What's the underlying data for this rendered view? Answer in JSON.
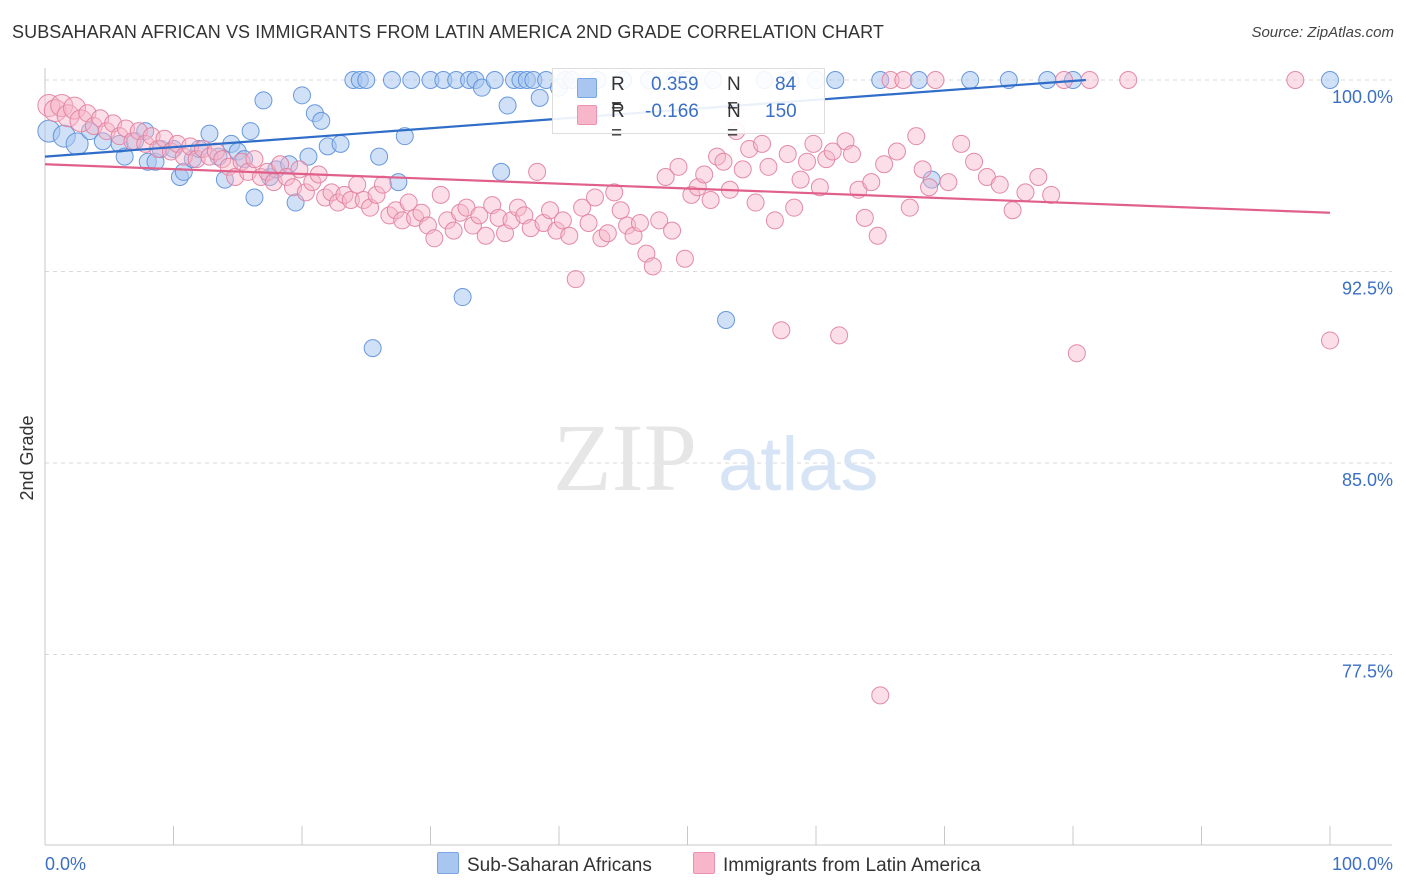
{
  "title": "SUBSAHARAN AFRICAN VS IMMIGRANTS FROM LATIN AMERICA 2ND GRADE CORRELATION CHART",
  "source": "Source: ZipAtlas.com",
  "watermark": {
    "zip": "ZIP",
    "atlas": "atlas"
  },
  "legend": {
    "r_label": "R =",
    "n_label": "N =",
    "rows": [
      {
        "r": "0.359",
        "n": "84",
        "color": "#a8c6f0"
      },
      {
        "r": "-0.166",
        "n": "150",
        "color": "#f7b6c9"
      }
    ]
  },
  "chart_data": {
    "type": "scatter",
    "title": "SUBSAHARAN AFRICAN VS IMMIGRANTS FROM LATIN AMERICA 2ND GRADE CORRELATION CHART",
    "xlabel": "",
    "ylabel": "2nd Grade",
    "xlim": [
      0,
      100
    ],
    "ylim": [
      70,
      100.8
    ],
    "x_tick_labels": [
      "0.0%",
      "100.0%"
    ],
    "y_ticks": [
      100.0,
      92.5,
      85.0,
      77.5
    ],
    "y_tick_labels": [
      "100.0%",
      "92.5%",
      "85.0%",
      "77.5%"
    ],
    "grid": true,
    "legend_position": "bottom-center",
    "series": [
      {
        "name": "Sub-Saharan Africans",
        "color": "#a8c6f0",
        "stroke": "#5b8fd8",
        "line_color": "#2f6dc8",
        "trend": [
          [
            0,
            97.0
          ],
          [
            81,
            100.0
          ]
        ],
        "points": [
          [
            0.3,
            98.0
          ],
          [
            1.5,
            97.8
          ],
          [
            2.5,
            97.5
          ],
          [
            3.5,
            98.0
          ],
          [
            4.5,
            97.6
          ],
          [
            5.8,
            97.5
          ],
          [
            6.2,
            97.0
          ],
          [
            7.0,
            97.6
          ],
          [
            7.8,
            98.0
          ],
          [
            8.0,
            96.8
          ],
          [
            8.6,
            96.8
          ],
          [
            9.0,
            97.3
          ],
          [
            10.0,
            97.3
          ],
          [
            10.5,
            96.2
          ],
          [
            10.8,
            96.4
          ],
          [
            11.5,
            96.9
          ],
          [
            12.0,
            97.3
          ],
          [
            12.8,
            97.9
          ],
          [
            13.5,
            97.0
          ],
          [
            14.0,
            96.1
          ],
          [
            14.5,
            97.5
          ],
          [
            15.0,
            97.2
          ],
          [
            15.5,
            96.9
          ],
          [
            16.0,
            98.0
          ],
          [
            16.3,
            95.4
          ],
          [
            17.0,
            99.2
          ],
          [
            17.5,
            96.2
          ],
          [
            18.0,
            96.5
          ],
          [
            19.0,
            96.7
          ],
          [
            19.5,
            95.2
          ],
          [
            20.0,
            99.4
          ],
          [
            20.5,
            97.0
          ],
          [
            21.0,
            98.7
          ],
          [
            21.5,
            98.4
          ],
          [
            22.0,
            97.4
          ],
          [
            23.0,
            97.5
          ],
          [
            24.0,
            100.0
          ],
          [
            24.5,
            100.0
          ],
          [
            25.0,
            100.0
          ],
          [
            25.5,
            89.5
          ],
          [
            26.0,
            97.0
          ],
          [
            27.0,
            100.0
          ],
          [
            27.5,
            96.0
          ],
          [
            28.0,
            97.8
          ],
          [
            28.5,
            100.0
          ],
          [
            30.0,
            100.0
          ],
          [
            31.0,
            100.0
          ],
          [
            32.0,
            100.0
          ],
          [
            32.5,
            91.5
          ],
          [
            33.0,
            100.0
          ],
          [
            33.5,
            100.0
          ],
          [
            34.0,
            99.7
          ],
          [
            35.0,
            100.0
          ],
          [
            35.5,
            96.4
          ],
          [
            36.0,
            99.0
          ],
          [
            36.5,
            100.0
          ],
          [
            37.0,
            100.0
          ],
          [
            37.5,
            100.0
          ],
          [
            38.0,
            100.0
          ],
          [
            38.5,
            99.3
          ],
          [
            39.0,
            100.0
          ],
          [
            40.0,
            99.7
          ],
          [
            40.5,
            100.0
          ],
          [
            41.0,
            100.0
          ],
          [
            43.0,
            100.0
          ],
          [
            45.0,
            100.0
          ],
          [
            47.0,
            100.0
          ],
          [
            49.0,
            100.0
          ],
          [
            50.0,
            100.0
          ],
          [
            52.0,
            100.0
          ],
          [
            53.0,
            90.6
          ],
          [
            56.0,
            100.0
          ],
          [
            58.0,
            100.0
          ],
          [
            60.0,
            100.0
          ],
          [
            61.5,
            100.0
          ],
          [
            65.0,
            100.0
          ],
          [
            68.0,
            100.0
          ],
          [
            69.0,
            96.1
          ],
          [
            72.0,
            100.0
          ],
          [
            75.0,
            100.0
          ],
          [
            78.0,
            100.0
          ],
          [
            80.0,
            100.0
          ],
          [
            100.0,
            100.0
          ]
        ]
      },
      {
        "name": "Immigrants from Latin America",
        "color": "#f7b6c9",
        "stroke": "#e0809f",
        "line_color": "#e0608a",
        "trend": [
          [
            0,
            96.7
          ],
          [
            100,
            94.8
          ]
        ],
        "points": [
          [
            0.3,
            99.0
          ],
          [
            0.8,
            98.8
          ],
          [
            1.3,
            99.0
          ],
          [
            1.8,
            98.6
          ],
          [
            2.3,
            98.9
          ],
          [
            2.8,
            98.4
          ],
          [
            3.3,
            98.7
          ],
          [
            3.8,
            98.2
          ],
          [
            4.3,
            98.5
          ],
          [
            4.8,
            98.0
          ],
          [
            5.3,
            98.3
          ],
          [
            5.8,
            97.8
          ],
          [
            6.3,
            98.1
          ],
          [
            6.8,
            97.6
          ],
          [
            7.3,
            98.0
          ],
          [
            7.8,
            97.5
          ],
          [
            8.3,
            97.8
          ],
          [
            8.8,
            97.3
          ],
          [
            9.3,
            97.7
          ],
          [
            9.8,
            97.2
          ],
          [
            10.3,
            97.5
          ],
          [
            10.8,
            97.0
          ],
          [
            11.3,
            97.4
          ],
          [
            11.8,
            96.9
          ],
          [
            12.3,
            97.3
          ],
          [
            12.8,
            97.0
          ],
          [
            13.3,
            97.2
          ],
          [
            13.8,
            96.9
          ],
          [
            14.3,
            96.6
          ],
          [
            14.8,
            96.2
          ],
          [
            15.3,
            96.8
          ],
          [
            15.8,
            96.4
          ],
          [
            16.3,
            96.9
          ],
          [
            16.8,
            96.2
          ],
          [
            17.3,
            96.4
          ],
          [
            17.8,
            96.0
          ],
          [
            18.3,
            96.7
          ],
          [
            18.8,
            96.2
          ],
          [
            19.3,
            95.8
          ],
          [
            19.8,
            96.5
          ],
          [
            20.3,
            95.6
          ],
          [
            20.8,
            96.0
          ],
          [
            21.3,
            96.3
          ],
          [
            21.8,
            95.4
          ],
          [
            22.3,
            95.6
          ],
          [
            22.8,
            95.2
          ],
          [
            23.3,
            95.5
          ],
          [
            23.8,
            95.3
          ],
          [
            24.3,
            95.9
          ],
          [
            24.8,
            95.3
          ],
          [
            25.3,
            95.0
          ],
          [
            25.8,
            95.5
          ],
          [
            26.3,
            95.9
          ],
          [
            26.8,
            94.7
          ],
          [
            27.3,
            94.9
          ],
          [
            27.8,
            94.5
          ],
          [
            28.3,
            95.2
          ],
          [
            28.8,
            94.6
          ],
          [
            29.3,
            94.8
          ],
          [
            29.8,
            94.3
          ],
          [
            30.3,
            93.8
          ],
          [
            30.8,
            95.5
          ],
          [
            31.3,
            94.5
          ],
          [
            31.8,
            94.1
          ],
          [
            32.3,
            94.8
          ],
          [
            32.8,
            95.0
          ],
          [
            33.3,
            94.3
          ],
          [
            33.8,
            94.7
          ],
          [
            34.3,
            93.9
          ],
          [
            34.8,
            95.1
          ],
          [
            35.3,
            94.6
          ],
          [
            35.8,
            94.0
          ],
          [
            36.3,
            94.5
          ],
          [
            36.8,
            95.0
          ],
          [
            37.3,
            94.7
          ],
          [
            37.8,
            94.2
          ],
          [
            38.3,
            96.4
          ],
          [
            38.8,
            94.4
          ],
          [
            39.3,
            94.9
          ],
          [
            39.8,
            94.1
          ],
          [
            40.3,
            94.5
          ],
          [
            40.8,
            93.9
          ],
          [
            41.3,
            92.2
          ],
          [
            41.8,
            95.0
          ],
          [
            42.3,
            94.4
          ],
          [
            42.8,
            95.4
          ],
          [
            43.3,
            93.8
          ],
          [
            43.8,
            94.0
          ],
          [
            44.3,
            95.6
          ],
          [
            44.8,
            94.9
          ],
          [
            45.3,
            94.3
          ],
          [
            45.8,
            93.9
          ],
          [
            46.3,
            94.4
          ],
          [
            46.8,
            93.2
          ],
          [
            47.3,
            92.7
          ],
          [
            47.8,
            94.5
          ],
          [
            48.3,
            96.2
          ],
          [
            48.8,
            94.1
          ],
          [
            49.3,
            96.6
          ],
          [
            49.8,
            93.0
          ],
          [
            50.3,
            95.5
          ],
          [
            50.8,
            95.8
          ],
          [
            51.3,
            96.3
          ],
          [
            51.8,
            95.3
          ],
          [
            52.3,
            97.0
          ],
          [
            52.8,
            96.8
          ],
          [
            53.3,
            95.7
          ],
          [
            53.8,
            98.0
          ],
          [
            54.3,
            96.5
          ],
          [
            54.8,
            97.3
          ],
          [
            55.3,
            95.2
          ],
          [
            55.8,
            97.5
          ],
          [
            56.3,
            96.6
          ],
          [
            56.8,
            94.5
          ],
          [
            57.3,
            90.2
          ],
          [
            57.8,
            97.1
          ],
          [
            58.3,
            95.0
          ],
          [
            58.8,
            96.1
          ],
          [
            59.3,
            96.8
          ],
          [
            59.8,
            97.5
          ],
          [
            60.3,
            95.8
          ],
          [
            60.8,
            96.9
          ],
          [
            61.3,
            97.2
          ],
          [
            61.8,
            90.0
          ],
          [
            62.3,
            97.6
          ],
          [
            62.8,
            97.1
          ],
          [
            63.3,
            95.7
          ],
          [
            63.8,
            94.6
          ],
          [
            64.3,
            96.0
          ],
          [
            64.8,
            93.9
          ],
          [
            65.3,
            96.7
          ],
          [
            65.8,
            100.0
          ],
          [
            66.3,
            97.2
          ],
          [
            66.8,
            100.0
          ],
          [
            67.3,
            95.0
          ],
          [
            67.8,
            97.8
          ],
          [
            68.3,
            96.5
          ],
          [
            68.8,
            95.8
          ],
          [
            69.3,
            100.0
          ],
          [
            70.3,
            96.0
          ],
          [
            71.3,
            97.5
          ],
          [
            72.3,
            96.8
          ],
          [
            73.3,
            96.2
          ],
          [
            74.3,
            95.9
          ],
          [
            75.3,
            94.9
          ],
          [
            76.3,
            95.6
          ],
          [
            77.3,
            96.2
          ],
          [
            78.3,
            95.5
          ],
          [
            79.3,
            100.0
          ],
          [
            80.3,
            89.3
          ],
          [
            81.3,
            100.0
          ],
          [
            84.3,
            100.0
          ],
          [
            65.0,
            75.9
          ],
          [
            97.3,
            100.0
          ],
          [
            100.0,
            89.8
          ]
        ]
      }
    ]
  },
  "bottom_legend": [
    {
      "label": "Sub-Saharan Africans",
      "color": "#a8c6f0"
    },
    {
      "label": "Immigrants from Latin America",
      "color": "#f7b6c9"
    }
  ]
}
